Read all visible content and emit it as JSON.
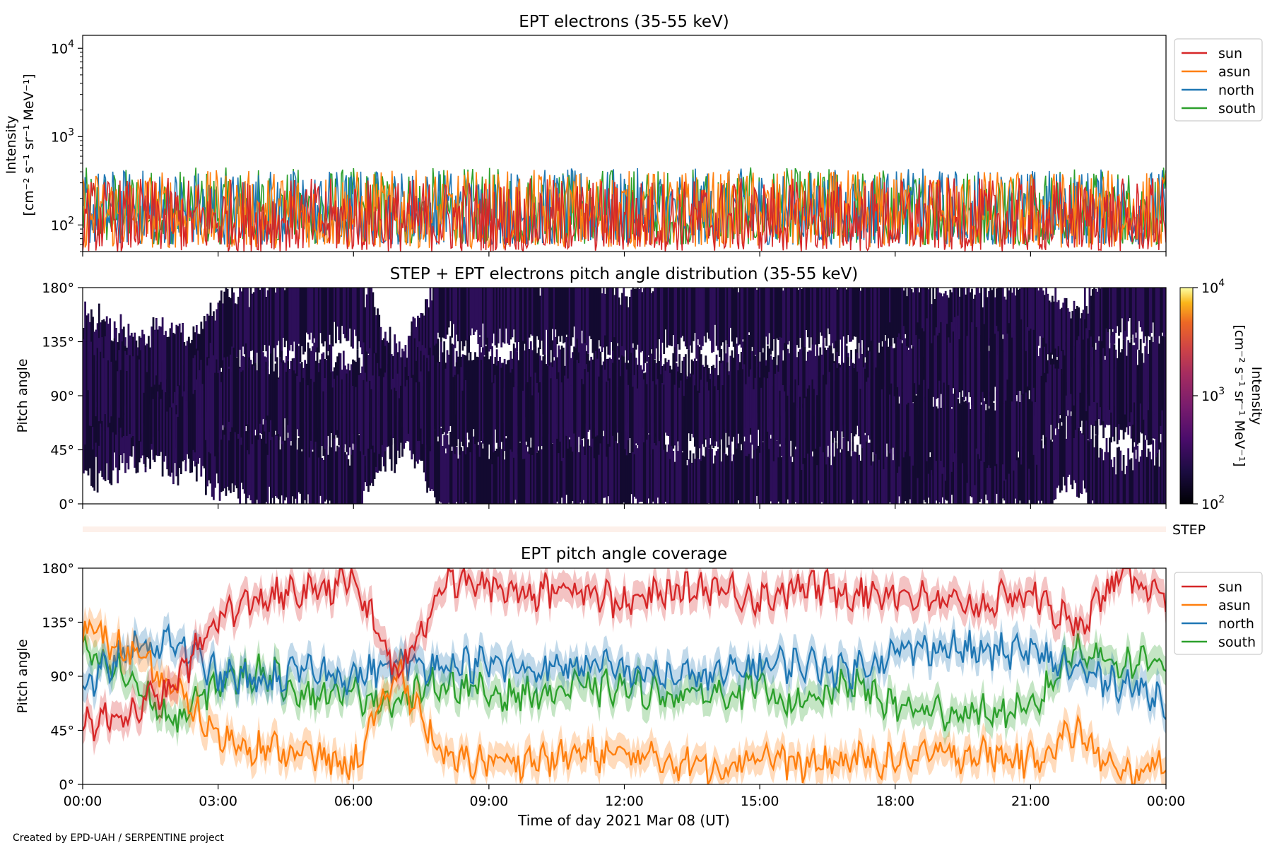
{
  "figure": {
    "xlabel": "Time of day 2021 Mar 08 (UT)",
    "credit": "Created by EPD-UAH / SERPENTINE project"
  },
  "colors": {
    "sun": "#d62728",
    "asun": "#ff7f0e",
    "north": "#1f77b4",
    "south": "#2ca02c"
  },
  "chart_data": [
    {
      "type": "line",
      "title": "EPT electrons (35-55 keV)",
      "ylabel_line1": "Intensity",
      "ylabel_line2": "[cm⁻² s⁻¹ sr⁻¹ MeV⁻¹]",
      "yscale": "log",
      "ylim": [
        50,
        14000
      ],
      "yticks": [
        {
          "value": 100,
          "base": "10",
          "exp": "2"
        },
        {
          "value": 1000,
          "base": "10",
          "exp": "3"
        },
        {
          "value": 10000,
          "base": "10",
          "exp": "4"
        }
      ],
      "x_range_hours": [
        0,
        24
      ],
      "legend_position": "outside-right",
      "series": [
        {
          "name": "sun",
          "typical_range": [
            50,
            340
          ]
        },
        {
          "name": "asun",
          "typical_range": [
            55,
            420
          ]
        },
        {
          "name": "north",
          "typical_range": [
            60,
            440
          ]
        },
        {
          "name": "south",
          "typical_range": [
            60,
            450
          ]
        }
      ]
    },
    {
      "type": "heatmap",
      "title": "STEP + EPT electrons pitch angle distribution (35-55 keV)",
      "ylabel": "Pitch angle",
      "ylim": [
        0,
        180
      ],
      "yticks": [
        "0°",
        "45°",
        "90°",
        "135°",
        "180°"
      ],
      "x_range_hours": [
        0,
        24
      ],
      "colorbar": {
        "scale": "log",
        "range": [
          100,
          10000
        ],
        "ticks": [
          {
            "base": "10",
            "exp": "2"
          },
          {
            "base": "10",
            "exp": "3"
          },
          {
            "base": "10",
            "exp": "4"
          }
        ],
        "label_line1": "Intensity",
        "label_line2": "[cm⁻² s⁻¹ sr⁻¹ MeV⁻¹]"
      }
    },
    {
      "type": "heatmap",
      "title": "",
      "row_label": "STEP",
      "x_range_hours": [
        0,
        24
      ]
    },
    {
      "type": "line",
      "title": "EPT pitch angle coverage",
      "ylabel": "Pitch angle",
      "ylim": [
        0,
        180
      ],
      "yticks": [
        "0°",
        "45°",
        "90°",
        "135°",
        "180°"
      ],
      "x_range_hours": [
        0,
        24
      ],
      "xticks": [
        "00:00",
        "03:00",
        "06:00",
        "09:00",
        "12:00",
        "15:00",
        "18:00",
        "21:00",
        "00:00"
      ],
      "legend_position": "outside-right",
      "series": [
        {
          "name": "sun",
          "x": [
            0,
            1,
            2,
            3,
            4,
            5,
            6,
            7,
            8,
            9,
            10,
            11,
            12,
            13,
            14,
            15,
            16,
            17,
            18,
            19,
            20,
            21,
            22,
            23,
            24
          ],
          "y": [
            50,
            60,
            80,
            140,
            155,
            160,
            170,
            90,
            170,
            165,
            160,
            165,
            150,
            160,
            165,
            155,
            165,
            160,
            160,
            150,
            150,
            160,
            130,
            175,
            160
          ]
        },
        {
          "name": "asun",
          "x": [
            0,
            1,
            2,
            3,
            4,
            5,
            6,
            7,
            8,
            9,
            10,
            11,
            12,
            13,
            14,
            15,
            16,
            17,
            18,
            19,
            20,
            21,
            22,
            23,
            24
          ],
          "y": [
            130,
            110,
            80,
            40,
            30,
            25,
            15,
            95,
            20,
            20,
            20,
            25,
            25,
            20,
            15,
            25,
            15,
            20,
            20,
            25,
            25,
            20,
            45,
            5,
            20
          ]
        },
        {
          "name": "north",
          "x": [
            0,
            1,
            2,
            3,
            4,
            5,
            6,
            7,
            8,
            9,
            10,
            11,
            12,
            13,
            14,
            15,
            16,
            17,
            18,
            19,
            20,
            21,
            22,
            23,
            24
          ],
          "y": [
            80,
            110,
            120,
            90,
            85,
            95,
            90,
            100,
            100,
            100,
            95,
            100,
            95,
            90,
            90,
            100,
            100,
            95,
            110,
            115,
            110,
            110,
            95,
            85,
            70
          ]
        },
        {
          "name": "south",
          "x": [
            0,
            1,
            2,
            3,
            4,
            5,
            6,
            7,
            8,
            9,
            10,
            11,
            12,
            13,
            14,
            15,
            16,
            17,
            18,
            19,
            20,
            21,
            22,
            23,
            24
          ],
          "y": [
            110,
            90,
            50,
            85,
            95,
            75,
            75,
            70,
            85,
            75,
            75,
            80,
            80,
            75,
            75,
            80,
            65,
            85,
            65,
            60,
            60,
            60,
            115,
            100,
            105
          ]
        }
      ]
    }
  ]
}
